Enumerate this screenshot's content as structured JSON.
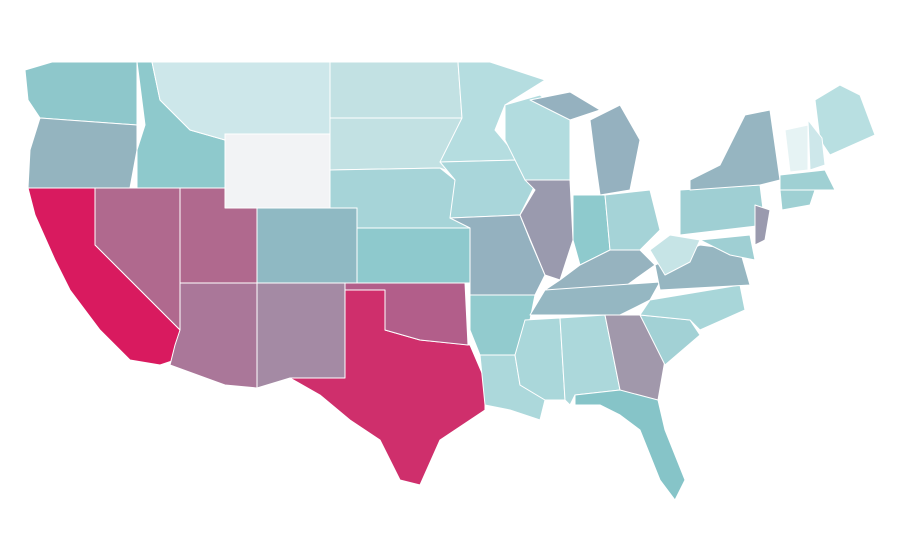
{
  "map": {
    "stroke": "#ffffff",
    "regions": [
      {
        "color": "#8ec7cb"
      },
      {
        "color": "#94b4bf"
      },
      {
        "color": "#8ec9cc"
      },
      {
        "color": "#cde7ea"
      },
      {
        "color": "#f2f3f5"
      },
      {
        "color": "#c2e1e3"
      },
      {
        "color": "#c2e1e3"
      },
      {
        "color": "#a6d4d8"
      },
      {
        "color": "#8fb9c3"
      },
      {
        "color": "#8ec9cd"
      },
      {
        "color": "#b0698e"
      },
      {
        "color": "#b0698e"
      },
      {
        "color": "#d91a5f"
      },
      {
        "color": "#aa7799"
      },
      {
        "color": "#a48aa4"
      },
      {
        "color": "#cf2f6c"
      },
      {
        "color": "#b25e8a"
      },
      {
        "color": "#b5dde0"
      },
      {
        "color": "#a9d6da"
      },
      {
        "color": "#b2dcdf"
      },
      {
        "color": "#94b1bf"
      },
      {
        "color": "#92cbce"
      },
      {
        "color": "#acd8db"
      },
      {
        "color": "#9a9aae"
      },
      {
        "color": "#95b1bf"
      },
      {
        "color": "#8ecacd"
      },
      {
        "color": "#a5d3d7"
      },
      {
        "color": "#96b3bf"
      },
      {
        "color": "#95b7c2"
      },
      {
        "color": "#aad7da"
      },
      {
        "color": "#acd8db"
      },
      {
        "color": "#a198ab"
      },
      {
        "color": "#86c4c8"
      },
      {
        "color": "#a2d1d5"
      },
      {
        "color": "#a8d6d9"
      },
      {
        "color": "#96b6c1"
      },
      {
        "color": "#c6e4e6"
      },
      {
        "color": "#9fcfd3"
      },
      {
        "color": "#96b5c1"
      },
      {
        "color": "#b8dfe1"
      },
      {
        "color": "#cde7ea"
      },
      {
        "color": "#e6f3f4"
      },
      {
        "color": "#9fd0d3"
      },
      {
        "color": "#9fd0d3"
      },
      {
        "color": "#9a9aae"
      },
      {
        "color": "#9fcfd3"
      }
    ]
  }
}
